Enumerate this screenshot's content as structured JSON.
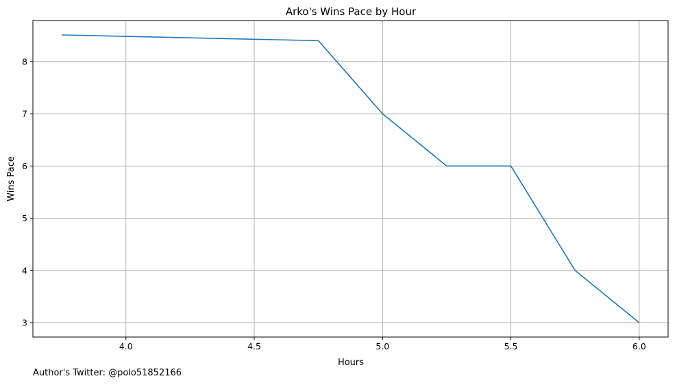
{
  "chart_data": {
    "type": "line",
    "title": "Arko's Wins Pace by Hour",
    "xlabel": "Hours",
    "ylabel": "Wins Pace",
    "x": [
      3.75,
      4.75,
      5.0,
      5.25,
      5.5,
      5.75,
      6.0
    ],
    "series": [
      {
        "values": [
          8.51,
          8.4,
          7.0,
          6.0,
          6.0,
          4.0,
          3.0
        ],
        "color": "#1f77b4"
      }
    ],
    "xticks": [
      4.0,
      4.5,
      5.0,
      5.5,
      6.0
    ],
    "xtick_labels": [
      "4.0",
      "4.5",
      "5.0",
      "5.5",
      "6.0"
    ],
    "yticks": [
      3,
      4,
      5,
      6,
      7,
      8
    ],
    "ytick_labels": [
      "3",
      "4",
      "5",
      "6",
      "7",
      "8"
    ],
    "xlim": [
      3.6375,
      6.1125
    ],
    "ylim": [
      2.7245,
      8.7855
    ],
    "grid": true
  },
  "footer": {
    "author_text": "Author's Twitter: @polo51852166"
  },
  "colors": {
    "grid": "#b0b0b0",
    "axes": "#000000"
  }
}
